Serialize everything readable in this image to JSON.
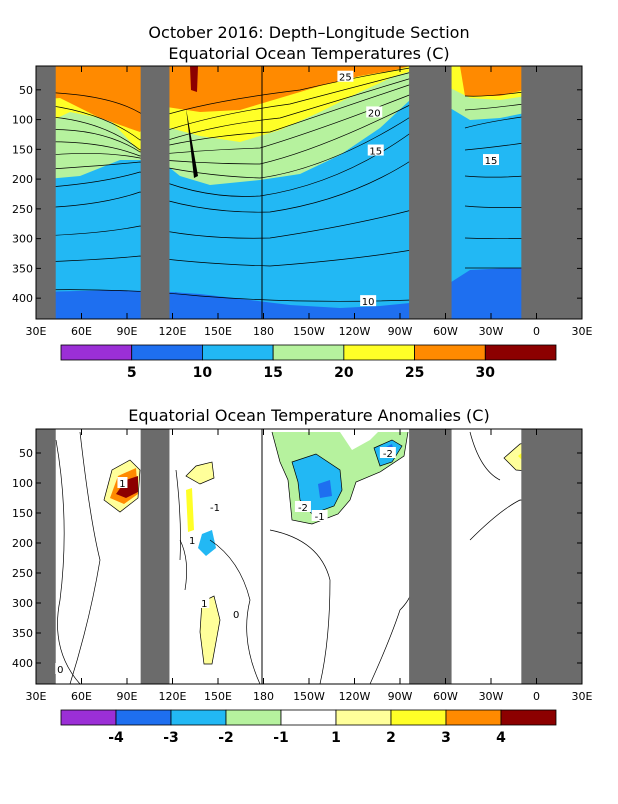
{
  "chart_data": [
    {
      "type": "heatmap",
      "title_line1": "October 2016: Depth–Longitude Section",
      "title_line2": "Equatorial Ocean Temperatures (C)",
      "x_ticks": [
        "30E",
        "60E",
        "90E",
        "120E",
        "150E",
        "180",
        "150W",
        "120W",
        "90W",
        "60W",
        "30W",
        "0",
        "30E"
      ],
      "y_ticks": [
        "50",
        "100",
        "150",
        "200",
        "250",
        "300",
        "350",
        "400"
      ],
      "ylim": [
        10,
        435
      ],
      "land_masks_lon": [
        [
          30,
          43
        ],
        [
          99,
          118
        ],
        [
          276,
          304
        ],
        [
          350,
          390
        ]
      ],
      "contour_labels": [
        {
          "text": "25",
          "lon": 234,
          "depth": 28
        },
        {
          "text": "20",
          "lon": 253,
          "depth": 88
        },
        {
          "text": "15",
          "lon": 254,
          "depth": 152
        },
        {
          "text": "15",
          "lon": 330,
          "depth": 168
        },
        {
          "text": "10",
          "lon": 249,
          "depth": 405
        }
      ],
      "colorbar": {
        "colors": [
          "#9b2fd6",
          "#1e6ff0",
          "#22b8f4",
          "#b6f29e",
          "#ffff27",
          "#ff8a00",
          "#8c0000"
        ],
        "labels": [
          "5",
          "10",
          "15",
          "20",
          "25",
          "30"
        ]
      }
    },
    {
      "type": "heatmap",
      "title": "Equatorial Ocean Temperature Anomalies (C)",
      "x_ticks": [
        "30E",
        "60E",
        "90E",
        "120E",
        "150E",
        "180",
        "150W",
        "120W",
        "90W",
        "60W",
        "30W",
        "0",
        "30E"
      ],
      "y_ticks": [
        "50",
        "100",
        "150",
        "200",
        "250",
        "300",
        "350",
        "400"
      ],
      "ylim": [
        10,
        435
      ],
      "land_masks_lon": [
        [
          30,
          43
        ],
        [
          99,
          118
        ],
        [
          276,
          304
        ],
        [
          350,
          390
        ]
      ],
      "contour_labels": [
        {
          "text": "-2",
          "lon": 262,
          "depth": 50
        },
        {
          "text": "-2",
          "lon": 206,
          "depth": 140
        },
        {
          "text": "-1",
          "lon": 148,
          "depth": 140
        },
        {
          "text": "-1",
          "lon": 217,
          "depth": 155
        },
        {
          "text": "1",
          "lon": 141,
          "depth": 300
        },
        {
          "text": "0",
          "lon": 162,
          "depth": 318
        },
        {
          "text": "0",
          "lon": 46,
          "depth": 410
        },
        {
          "text": "1",
          "lon": 87,
          "depth": 100
        },
        {
          "text": "1",
          "lon": 133,
          "depth": 195
        }
      ],
      "colorbar": {
        "colors": [
          "#9b2fd6",
          "#1e6ff0",
          "#22b8f4",
          "#b6f29e",
          "#ffffff",
          "#ffff9a",
          "#ffff27",
          "#ff8a00",
          "#8c0000"
        ],
        "labels": [
          "-4",
          "-3",
          "-2",
          "-1",
          "1",
          "2",
          "3",
          "4"
        ]
      }
    }
  ]
}
